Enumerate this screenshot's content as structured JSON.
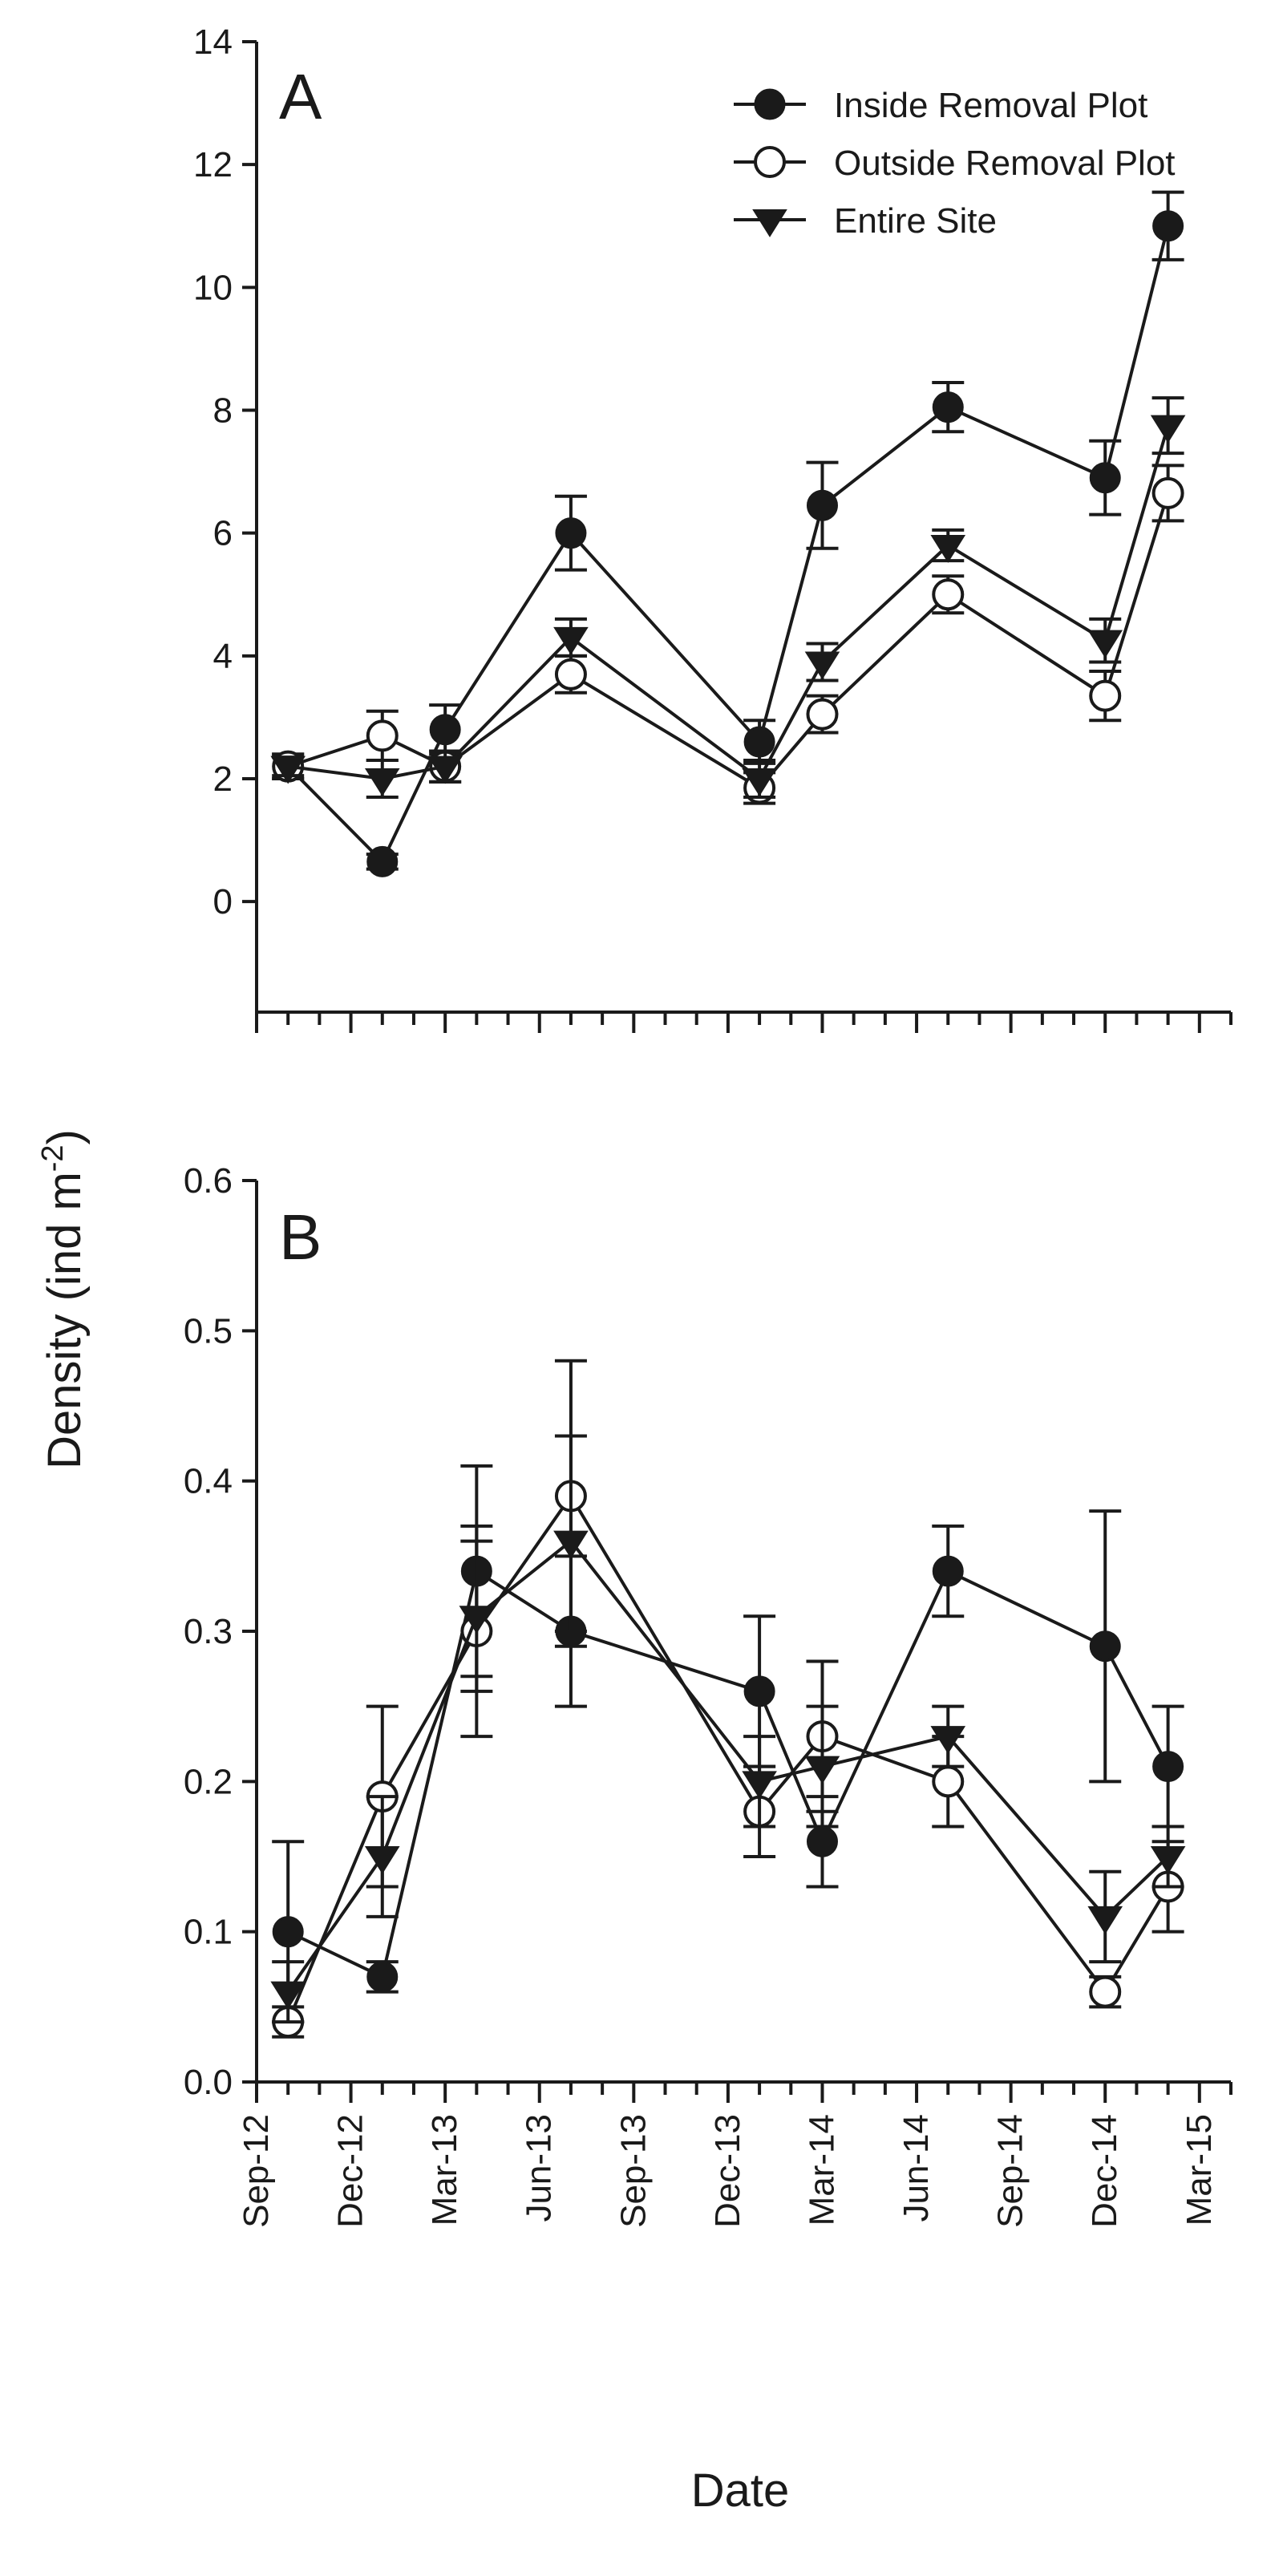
{
  "chart_data": [
    {
      "type": "line",
      "panel": "A",
      "xlabel": "Date",
      "ylabel": "Density (ind m-2)",
      "ylim": [
        -1.8,
        14
      ],
      "yticks": [
        0,
        2,
        4,
        6,
        8,
        10,
        12,
        14
      ],
      "ytick_labels": [
        "0",
        "2",
        "4",
        "6",
        "8",
        "10",
        "12",
        "14"
      ],
      "legend": {
        "location": "top-right",
        "entries": [
          "Inside Removal Plot",
          "Outside Removal Plot",
          "Entire Site"
        ]
      },
      "series": [
        {
          "name": "Inside Removal Plot",
          "marker": "filled-circle",
          "points": [
            {
              "x": 1,
              "y": 2.2,
              "err": 0.2
            },
            {
              "x": 4,
              "y": 0.65,
              "err": 0.12
            },
            {
              "x": 6,
              "y": 2.8,
              "err": 0.4
            },
            {
              "x": 10,
              "y": 6.0,
              "err": 0.6
            },
            {
              "x": 16,
              "y": 2.6,
              "err": 0.35
            },
            {
              "x": 18,
              "y": 6.45,
              "err": 0.7
            },
            {
              "x": 22,
              "y": 8.05,
              "err": 0.4
            },
            {
              "x": 27,
              "y": 6.9,
              "err": 0.6
            },
            {
              "x": 29,
              "y": 11.0,
              "err": 0.55
            }
          ]
        },
        {
          "name": "Outside Removal Plot",
          "marker": "open-circle",
          "points": [
            {
              "x": 1,
              "y": 2.2,
              "err": 0.2
            },
            {
              "x": 4,
              "y": 2.7,
              "err": 0.4
            },
            {
              "x": 6,
              "y": 2.2,
              "err": 0.25
            },
            {
              "x": 10,
              "y": 3.7,
              "err": 0.3
            },
            {
              "x": 16,
              "y": 1.85,
              "err": 0.25
            },
            {
              "x": 18,
              "y": 3.05,
              "err": 0.3
            },
            {
              "x": 22,
              "y": 5.0,
              "err": 0.3
            },
            {
              "x": 27,
              "y": 3.35,
              "err": 0.4
            },
            {
              "x": 29,
              "y": 6.65,
              "err": 0.45
            }
          ]
        },
        {
          "name": "Entire Site",
          "marker": "filled-triangle-down",
          "points": [
            {
              "x": 1,
              "y": 2.2,
              "err": 0.15
            },
            {
              "x": 4,
              "y": 2.0,
              "err": 0.3
            },
            {
              "x": 6,
              "y": 2.2,
              "err": 0.25
            },
            {
              "x": 10,
              "y": 4.3,
              "err": 0.3
            },
            {
              "x": 16,
              "y": 2.0,
              "err": 0.3
            },
            {
              "x": 18,
              "y": 3.9,
              "err": 0.3
            },
            {
              "x": 22,
              "y": 5.8,
              "err": 0.25
            },
            {
              "x": 27,
              "y": 4.25,
              "err": 0.35
            },
            {
              "x": 29,
              "y": 7.75,
              "err": 0.45
            }
          ]
        }
      ]
    },
    {
      "type": "line",
      "panel": "B",
      "xlabel": "Date",
      "ylabel": "Density (ind m-2)",
      "ylim": [
        0.0,
        0.6
      ],
      "yticks": [
        0.0,
        0.1,
        0.2,
        0.3,
        0.4,
        0.5,
        0.6
      ],
      "ytick_labels": [
        "0.0",
        "0.1",
        "0.2",
        "0.3",
        "0.4",
        "0.5",
        "0.6"
      ],
      "xticks_major": [
        0,
        3,
        6,
        9,
        12,
        15,
        18,
        21,
        24,
        27,
        30
      ],
      "xtick_labels": [
        "Sep-12",
        "Dec-12",
        "Mar-13",
        "Jun-13",
        "Sep-13",
        "Dec-13",
        "Mar-14",
        "Jun-14",
        "Sep-14",
        "Dec-14",
        "Mar-15"
      ],
      "xlim": [
        0,
        31
      ],
      "series": [
        {
          "name": "Inside Removal Plot",
          "marker": "filled-circle",
          "points": [
            {
              "x": 1,
              "y": 0.1,
              "err": 0.06
            },
            {
              "x": 4,
              "y": 0.07,
              "err": 0.01
            },
            {
              "x": 7,
              "y": 0.34,
              "err": 0.07
            },
            {
              "x": 10,
              "y": 0.3,
              "err": 0.05
            },
            {
              "x": 16,
              "y": 0.26,
              "err": 0.05
            },
            {
              "x": 18,
              "y": 0.16,
              "err": 0.03
            },
            {
              "x": 22,
              "y": 0.34,
              "err": 0.03
            },
            {
              "x": 27,
              "y": 0.29,
              "err": 0.09
            },
            {
              "x": 29,
              "y": 0.21,
              "err": 0.04
            }
          ]
        },
        {
          "name": "Outside Removal Plot",
          "marker": "open-circle",
          "points": [
            {
              "x": 1,
              "y": 0.04,
              "err": 0.01
            },
            {
              "x": 4,
              "y": 0.19,
              "err": 0.06
            },
            {
              "x": 7,
              "y": 0.3,
              "err": 0.07
            },
            {
              "x": 10,
              "y": 0.39,
              "err": 0.09
            },
            {
              "x": 16,
              "y": 0.18,
              "err": 0.03
            },
            {
              "x": 18,
              "y": 0.23,
              "err": 0.05
            },
            {
              "x": 22,
              "y": 0.2,
              "err": 0.03
            },
            {
              "x": 27,
              "y": 0.06,
              "err": 0.01
            },
            {
              "x": 29,
              "y": 0.13,
              "err": 0.03
            }
          ]
        },
        {
          "name": "Entire Site",
          "marker": "filled-triangle-down",
          "points": [
            {
              "x": 1,
              "y": 0.06,
              "err": 0.02
            },
            {
              "x": 4,
              "y": 0.15,
              "err": 0.04
            },
            {
              "x": 7,
              "y": 0.31,
              "err": 0.05
            },
            {
              "x": 10,
              "y": 0.36,
              "err": 0.07
            },
            {
              "x": 16,
              "y": 0.2,
              "err": 0.03
            },
            {
              "x": 18,
              "y": 0.21,
              "err": 0.04
            },
            {
              "x": 22,
              "y": 0.23,
              "err": 0.02
            },
            {
              "x": 27,
              "y": 0.11,
              "err": 0.03
            },
            {
              "x": 29,
              "y": 0.15,
              "err": 0.02
            }
          ]
        }
      ]
    }
  ],
  "figure": {
    "ylabel_main": "Density (ind m",
    "ylabel_sup": "-2",
    "ylabel_end": ")",
    "xlabel": "Date",
    "panel_a": "A",
    "panel_b": "B"
  }
}
